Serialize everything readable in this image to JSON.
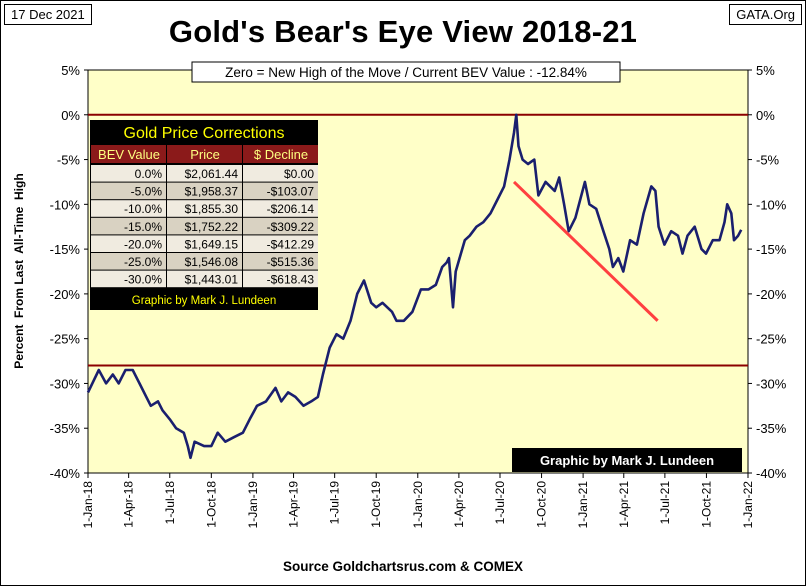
{
  "header": {
    "date": "17 Dec 2021",
    "site": "GATA.Org",
    "title": "Gold's Bear's Eye View 2018-21",
    "source": "Source Goldchartsrus.com & COMEX"
  },
  "colors": {
    "plot_bg": "#ffffc8",
    "line": "#1a1f6e",
    "reference_line": "#8b0000",
    "trend_line": "#ff4040",
    "table_bg": "#000000",
    "table_title": "#ffff00",
    "table_header_bg": "#8b1a1a",
    "table_row_light": "#f0ebe0",
    "table_row_dark": "#d9d2c2"
  },
  "table": {
    "title": "Gold Price Corrections",
    "headers": [
      "BEV Value",
      "Price",
      "$ Decline"
    ],
    "rows": [
      [
        "0.0%",
        "$2,061.44",
        "$0.00"
      ],
      [
        "-5.0%",
        "$1,958.37",
        "-$103.07"
      ],
      [
        "-10.0%",
        "$1,855.30",
        "-$206.14"
      ],
      [
        "-15.0%",
        "$1,752.22",
        "-$309.22"
      ],
      [
        "-20.0%",
        "$1,649.15",
        "-$412.29"
      ],
      [
        "-25.0%",
        "$1,546.08",
        "-$515.36"
      ],
      [
        "-30.0%",
        "$1,443.01",
        "-$618.43"
      ]
    ],
    "credit": "Graphic by Mark J. Lundeen"
  },
  "chart_data": {
    "type": "line",
    "title": "Gold's Bear's Eye View 2018-21",
    "annotation": "Zero = New High of the Move / Current  BEV Value : -12.84%",
    "credit": "Graphic by Mark J. Lundeen",
    "ylabel": "Percent  From Last  All-Time  High",
    "xlabel": "",
    "ylim": [
      -40,
      5
    ],
    "yticks": [
      "5%",
      "0%",
      "-5%",
      "-10%",
      "-15%",
      "-20%",
      "-25%",
      "-30%",
      "-35%",
      "-40%"
    ],
    "xticks": [
      "1-Jan-18",
      "1-Apr-18",
      "1-Jul-18",
      "1-Oct-18",
      "1-Jan-19",
      "1-Apr-19",
      "1-Jul-19",
      "1-Oct-19",
      "1-Jan-20",
      "1-Apr-20",
      "1-Jul-20",
      "1-Oct-20",
      "1-Jan-21",
      "1-Apr-21",
      "1-Jul-21",
      "1-Oct-21",
      "1-Jan-22"
    ],
    "reference_lines": [
      0,
      -28
    ],
    "trend_line": {
      "x": [
        "2020-08-01",
        "2021-06-15"
      ],
      "y": [
        -7.5,
        -23
      ]
    },
    "series": [
      {
        "values": [
          [
            "2018-01-01",
            -31
          ],
          [
            "2018-01-25",
            -28.5
          ],
          [
            "2018-02-10",
            -30
          ],
          [
            "2018-02-25",
            -29
          ],
          [
            "2018-03-10",
            -30
          ],
          [
            "2018-03-25",
            -28.5
          ],
          [
            "2018-04-10",
            -28.5
          ],
          [
            "2018-04-25",
            -30
          ],
          [
            "2018-05-10",
            -31.5
          ],
          [
            "2018-05-20",
            -32.5
          ],
          [
            "2018-06-05",
            -32
          ],
          [
            "2018-06-15",
            -33
          ],
          [
            "2018-07-01",
            -34
          ],
          [
            "2018-07-15",
            -35
          ],
          [
            "2018-08-01",
            -35.5
          ],
          [
            "2018-08-10",
            -37
          ],
          [
            "2018-08-16",
            -38.3
          ],
          [
            "2018-08-25",
            -36.5
          ],
          [
            "2018-09-15",
            -37
          ],
          [
            "2018-10-01",
            -37
          ],
          [
            "2018-10-15",
            -35.5
          ],
          [
            "2018-11-01",
            -36.5
          ],
          [
            "2018-11-20",
            -36
          ],
          [
            "2018-12-10",
            -35.5
          ],
          [
            "2018-12-25",
            -34
          ],
          [
            "2019-01-10",
            -32.5
          ],
          [
            "2019-01-30",
            -32
          ],
          [
            "2019-02-20",
            -30.5
          ],
          [
            "2019-03-05",
            -32
          ],
          [
            "2019-03-20",
            -31
          ],
          [
            "2019-04-05",
            -31.5
          ],
          [
            "2019-04-23",
            -32.5
          ],
          [
            "2019-05-10",
            -32
          ],
          [
            "2019-05-25",
            -31.5
          ],
          [
            "2019-06-05",
            -29
          ],
          [
            "2019-06-20",
            -26
          ],
          [
            "2019-07-05",
            -24.5
          ],
          [
            "2019-07-20",
            -25
          ],
          [
            "2019-08-05",
            -23
          ],
          [
            "2019-08-20",
            -20
          ],
          [
            "2019-09-04",
            -18.5
          ],
          [
            "2019-09-20",
            -21
          ],
          [
            "2019-10-01",
            -21.5
          ],
          [
            "2019-10-15",
            -21
          ],
          [
            "2019-11-05",
            -22
          ],
          [
            "2019-11-15",
            -23
          ],
          [
            "2019-12-01",
            -23
          ],
          [
            "2019-12-20",
            -22
          ],
          [
            "2020-01-08",
            -19.5
          ],
          [
            "2020-01-25",
            -19.5
          ],
          [
            "2020-02-10",
            -19
          ],
          [
            "2020-02-24",
            -17
          ],
          [
            "2020-03-05",
            -16.5
          ],
          [
            "2020-03-10",
            -16
          ],
          [
            "2020-03-19",
            -21.5
          ],
          [
            "2020-03-25",
            -17.5
          ],
          [
            "2020-04-14",
            -14
          ],
          [
            "2020-04-25",
            -13.5
          ],
          [
            "2020-05-10",
            -12.5
          ],
          [
            "2020-05-25",
            -12
          ],
          [
            "2020-06-10",
            -11
          ],
          [
            "2020-06-25",
            -9.5
          ],
          [
            "2020-07-10",
            -8
          ],
          [
            "2020-07-22",
            -5
          ],
          [
            "2020-08-01",
            -2
          ],
          [
            "2020-08-06",
            0
          ],
          [
            "2020-08-11",
            -3.5
          ],
          [
            "2020-08-20",
            -5
          ],
          [
            "2020-09-01",
            -5.5
          ],
          [
            "2020-09-15",
            -5
          ],
          [
            "2020-09-24",
            -9
          ],
          [
            "2020-10-10",
            -7.5
          ],
          [
            "2020-10-30",
            -8.5
          ],
          [
            "2020-11-09",
            -7
          ],
          [
            "2020-11-20",
            -10
          ],
          [
            "2020-11-30",
            -13
          ],
          [
            "2020-12-15",
            -11.5
          ],
          [
            "2021-01-05",
            -7.5
          ],
          [
            "2021-01-15",
            -10
          ],
          [
            "2021-01-30",
            -10.5
          ],
          [
            "2021-02-15",
            -13
          ],
          [
            "2021-02-28",
            -15
          ],
          [
            "2021-03-08",
            -17
          ],
          [
            "2021-03-20",
            -16
          ],
          [
            "2021-03-31",
            -17.5
          ],
          [
            "2021-04-15",
            -14
          ],
          [
            "2021-04-30",
            -14.5
          ],
          [
            "2021-05-15",
            -11
          ],
          [
            "2021-06-01",
            -8
          ],
          [
            "2021-06-10",
            -8.5
          ],
          [
            "2021-06-17",
            -12.5
          ],
          [
            "2021-06-30",
            -14.5
          ],
          [
            "2021-07-15",
            -13
          ],
          [
            "2021-07-30",
            -13.5
          ],
          [
            "2021-08-09",
            -15.5
          ],
          [
            "2021-08-20",
            -13.5
          ],
          [
            "2021-09-05",
            -12.5
          ],
          [
            "2021-09-20",
            -15
          ],
          [
            "2021-09-30",
            -15.5
          ],
          [
            "2021-10-15",
            -14
          ],
          [
            "2021-10-30",
            -14
          ],
          [
            "2021-11-10",
            -12
          ],
          [
            "2021-11-16",
            -10
          ],
          [
            "2021-11-25",
            -11
          ],
          [
            "2021-12-01",
            -14
          ],
          [
            "2021-12-10",
            -13.5
          ],
          [
            "2021-12-17",
            -12.84
          ]
        ]
      }
    ]
  }
}
